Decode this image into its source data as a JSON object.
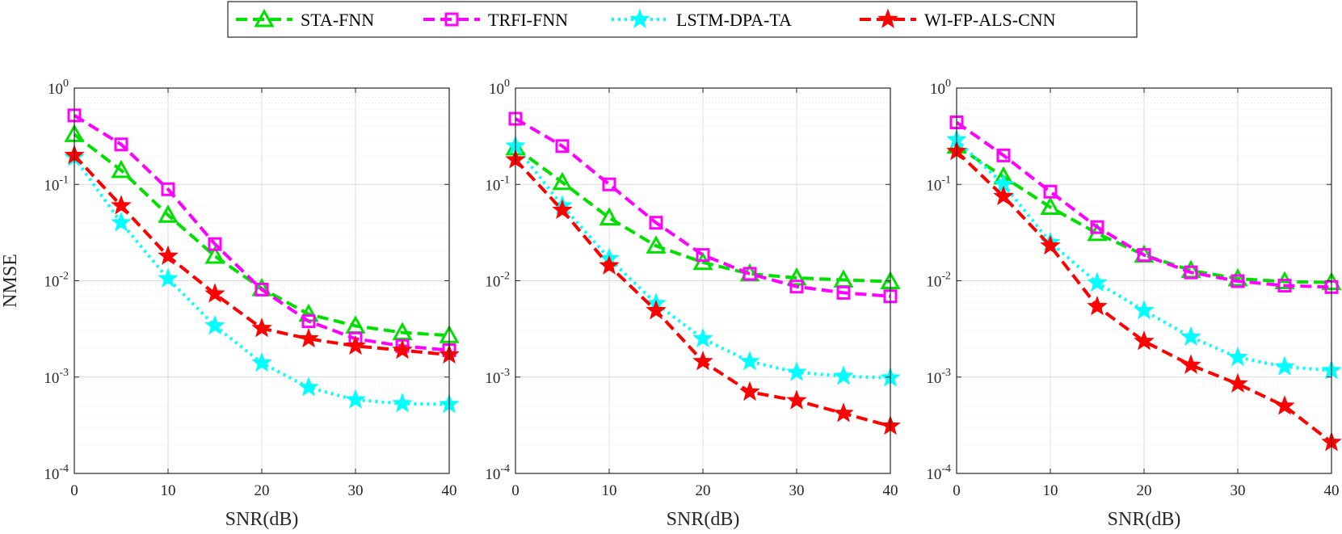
{
  "legend": {
    "placement": "top-center",
    "entries": [
      {
        "name": "STA-FNN",
        "color": "#00e000",
        "marker": "triangle",
        "dash": "dash"
      },
      {
        "name": "TRFI-FNN",
        "color": "#ff00ff",
        "marker": "square",
        "dash": "dash"
      },
      {
        "name": "LSTM-DPA-TA",
        "color": "#00ffff",
        "marker": "star",
        "dash": "dot"
      },
      {
        "name": "WI-FP-ALS-CNN",
        "color": "#ff0000",
        "marker": "star",
        "dash": "dash"
      }
    ]
  },
  "chart_data": [
    {
      "type": "line",
      "xlabel": "SNR(dB)",
      "ylabel": "NMSE",
      "yscale": "log",
      "xlim": [
        0,
        40
      ],
      "ylim": [
        0.0001,
        1
      ],
      "xticks": [
        "0",
        "10",
        "20",
        "30",
        "40"
      ],
      "yticks": [
        {
          "base": "10",
          "exp": "0"
        },
        {
          "base": "10",
          "exp": "-1"
        },
        {
          "base": "10",
          "exp": "-2"
        },
        {
          "base": "10",
          "exp": "-3"
        },
        {
          "base": "10",
          "exp": "-4"
        }
      ],
      "grid": true,
      "x": [
        0,
        5,
        10,
        15,
        20,
        25,
        30,
        35,
        40
      ],
      "series": [
        {
          "name": "STA-FNN",
          "values": [
            0.33,
            0.14,
            0.048,
            0.018,
            0.0083,
            0.0045,
            0.0034,
            0.0029,
            0.0027
          ]
        },
        {
          "name": "TRFI-FNN",
          "values": [
            0.52,
            0.26,
            0.089,
            0.024,
            0.0081,
            0.0038,
            0.0025,
            0.0021,
            0.0019
          ]
        },
        {
          "name": "LSTM-DPA-TA",
          "values": [
            0.19,
            0.04,
            0.0105,
            0.0034,
            0.0014,
            0.00078,
            0.00058,
            0.00053,
            0.00052
          ]
        },
        {
          "name": "WI-FP-ALS-CNN",
          "values": [
            0.2,
            0.06,
            0.018,
            0.0073,
            0.0032,
            0.0025,
            0.0021,
            0.0019,
            0.0017
          ]
        }
      ]
    },
    {
      "type": "line",
      "xlabel": "SNR(dB)",
      "ylabel": "",
      "yscale": "log",
      "xlim": [
        0,
        40
      ],
      "ylim": [
        0.0001,
        1
      ],
      "xticks": [
        "0",
        "10",
        "20",
        "30",
        "40"
      ],
      "yticks": [
        {
          "base": "10",
          "exp": "0"
        },
        {
          "base": "10",
          "exp": "-1"
        },
        {
          "base": "10",
          "exp": "-2"
        },
        {
          "base": "10",
          "exp": "-3"
        },
        {
          "base": "10",
          "exp": "-4"
        }
      ],
      "grid": true,
      "x": [
        0,
        5,
        10,
        15,
        20,
        25,
        30,
        35,
        40
      ],
      "series": [
        {
          "name": "STA-FNN",
          "values": [
            0.24,
            0.105,
            0.045,
            0.023,
            0.0155,
            0.0118,
            0.0107,
            0.0102,
            0.0098
          ]
        },
        {
          "name": "TRFI-FNN",
          "values": [
            0.48,
            0.25,
            0.1,
            0.04,
            0.0185,
            0.0118,
            0.0087,
            0.0075,
            0.0069
          ]
        },
        {
          "name": "LSTM-DPA-TA",
          "values": [
            0.25,
            0.06,
            0.017,
            0.0058,
            0.0025,
            0.00145,
            0.00112,
            0.00102,
            0.00098
          ]
        },
        {
          "name": "WI-FP-ALS-CNN",
          "values": [
            0.18,
            0.054,
            0.0143,
            0.0049,
            0.00145,
            0.0007,
            0.00057,
            0.00042,
            0.00031
          ]
        }
      ]
    },
    {
      "type": "line",
      "xlabel": "SNR(dB)",
      "ylabel": "",
      "yscale": "log",
      "xlim": [
        0,
        40
      ],
      "ylim": [
        0.0001,
        1
      ],
      "xticks": [
        "0",
        "10",
        "20",
        "30",
        "40"
      ],
      "yticks": [
        {
          "base": "10",
          "exp": "0"
        },
        {
          "base": "10",
          "exp": "-1"
        },
        {
          "base": "10",
          "exp": "-2"
        },
        {
          "base": "10",
          "exp": "-3"
        },
        {
          "base": "10",
          "exp": "-4"
        }
      ],
      "grid": true,
      "x": [
        0,
        5,
        10,
        15,
        20,
        25,
        30,
        35,
        40
      ],
      "series": [
        {
          "name": "STA-FNN",
          "values": [
            0.25,
            0.12,
            0.058,
            0.031,
            0.0185,
            0.0128,
            0.0105,
            0.0098,
            0.0096
          ]
        },
        {
          "name": "TRFI-FNN",
          "values": [
            0.44,
            0.2,
            0.084,
            0.036,
            0.0185,
            0.0122,
            0.0099,
            0.0089,
            0.0086
          ]
        },
        {
          "name": "LSTM-DPA-TA",
          "values": [
            0.29,
            0.1,
            0.025,
            0.0095,
            0.0049,
            0.0026,
            0.0016,
            0.00128,
            0.00117
          ]
        },
        {
          "name": "WI-FP-ALS-CNN",
          "values": [
            0.22,
            0.075,
            0.023,
            0.0054,
            0.00235,
            0.00133,
            0.00085,
            0.0005,
            0.00021
          ]
        }
      ]
    }
  ]
}
